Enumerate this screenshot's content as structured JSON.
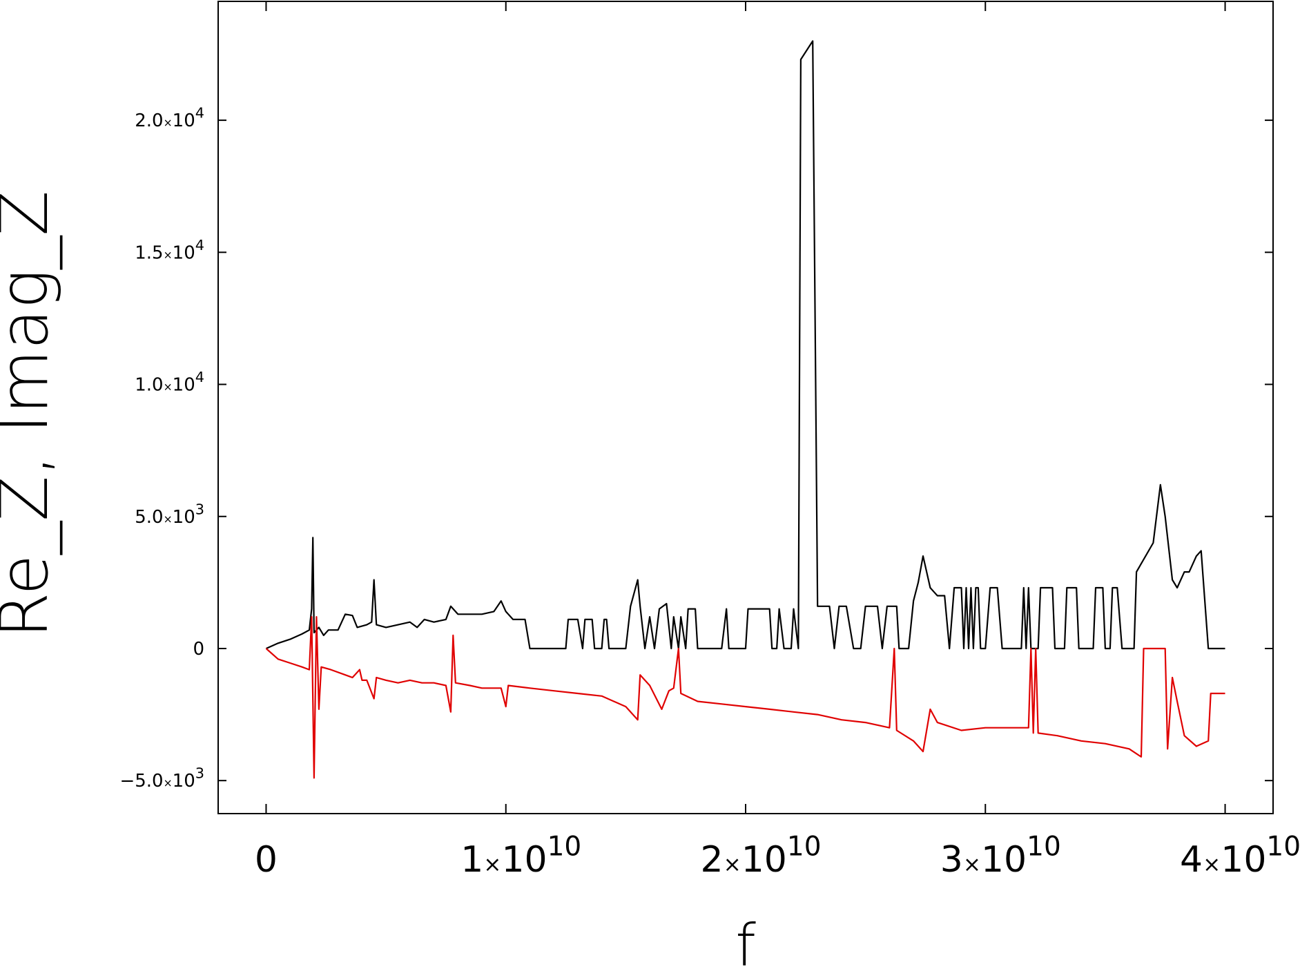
{
  "chart_data": {
    "type": "line",
    "xlabel": "f",
    "ylabel": "Re_Z, Imag_Z",
    "xlim": [
      -2000000000,
      42000000000
    ],
    "ylim": [
      -6250,
      24500
    ],
    "x_ticks": [
      0,
      10000000000,
      20000000000,
      30000000000,
      40000000000
    ],
    "x_tick_labels": [
      {
        "mantissa": "0",
        "times": "",
        "base": "",
        "exp": ""
      },
      {
        "mantissa": "1",
        "times": "×",
        "base": "10",
        "exp": "10"
      },
      {
        "mantissa": "2",
        "times": "×",
        "base": "10",
        "exp": "10"
      },
      {
        "mantissa": "3",
        "times": "×",
        "base": "10",
        "exp": "10"
      },
      {
        "mantissa": "4",
        "times": "×",
        "base": "10",
        "exp": "10"
      }
    ],
    "y_ticks": [
      -5000,
      0,
      5000,
      10000,
      15000,
      20000
    ],
    "y_tick_labels": [
      {
        "mantissa": "−5.0",
        "times": "×",
        "base": "10",
        "exp": "3"
      },
      {
        "mantissa": "0",
        "times": "",
        "base": "",
        "exp": ""
      },
      {
        "mantissa": "5.0",
        "times": "×",
        "base": "10",
        "exp": "3"
      },
      {
        "mantissa": "1.0",
        "times": "×",
        "base": "10",
        "exp": "4"
      },
      {
        "mantissa": "1.5",
        "times": "×",
        "base": "10",
        "exp": "4"
      },
      {
        "mantissa": "2.0",
        "times": "×",
        "base": "10",
        "exp": "4"
      }
    ],
    "grid": false,
    "series": [
      {
        "color": "#000000",
        "points": [
          [
            0,
            0
          ],
          [
            500000000,
            200
          ],
          [
            1000000000,
            350
          ],
          [
            1500000000,
            550
          ],
          [
            1800000000,
            700
          ],
          [
            1900000000,
            1500
          ],
          [
            1950000000,
            4200
          ],
          [
            2000000000,
            600
          ],
          [
            2200000000,
            800
          ],
          [
            2400000000,
            500
          ],
          [
            2600000000,
            700
          ],
          [
            3000000000,
            700
          ],
          [
            3300000000,
            1300
          ],
          [
            3600000000,
            1250
          ],
          [
            3800000000,
            800
          ],
          [
            4200000000,
            900
          ],
          [
            4400000000,
            1000
          ],
          [
            4500000000,
            2600
          ],
          [
            4600000000,
            900
          ],
          [
            5000000000,
            800
          ],
          [
            5500000000,
            900
          ],
          [
            6000000000,
            1000
          ],
          [
            6300000000,
            800
          ],
          [
            6600000000,
            1100
          ],
          [
            7000000000,
            1000
          ],
          [
            7500000000,
            1100
          ],
          [
            7700000000,
            1600
          ],
          [
            8000000000,
            1300
          ],
          [
            8500000000,
            1300
          ],
          [
            9000000000,
            1300
          ],
          [
            9500000000,
            1400
          ],
          [
            9800000000,
            1800
          ],
          [
            10000000000,
            1400
          ],
          [
            10300000000,
            1100
          ],
          [
            10800000000,
            1100
          ],
          [
            11000000000,
            0
          ],
          [
            12000000000,
            0
          ],
          [
            12500000000,
            0
          ],
          [
            12600000000,
            1100
          ],
          [
            13000000000,
            1100
          ],
          [
            13200000000,
            0
          ],
          [
            13300000000,
            1100
          ],
          [
            13600000000,
            1100
          ],
          [
            13700000000,
            0
          ],
          [
            14000000000,
            0
          ],
          [
            14100000000,
            1100
          ],
          [
            14200000000,
            1100
          ],
          [
            14300000000,
            0
          ],
          [
            15000000000,
            0
          ],
          [
            15200000000,
            1600
          ],
          [
            15500000000,
            2600
          ],
          [
            15600000000,
            1600
          ],
          [
            15800000000,
            0
          ],
          [
            16000000000,
            1200
          ],
          [
            16200000000,
            0
          ],
          [
            16400000000,
            1500
          ],
          [
            16700000000,
            1700
          ],
          [
            16900000000,
            0
          ],
          [
            17000000000,
            1200
          ],
          [
            17200000000,
            0
          ],
          [
            17300000000,
            1200
          ],
          [
            17500000000,
            0
          ],
          [
            17600000000,
            1500
          ],
          [
            17900000000,
            1500
          ],
          [
            18000000000,
            0
          ],
          [
            19000000000,
            0
          ],
          [
            19200000000,
            1500
          ],
          [
            19300000000,
            0
          ],
          [
            20000000000,
            0
          ],
          [
            20100000000,
            1500
          ],
          [
            21000000000,
            1500
          ],
          [
            21100000000,
            0
          ],
          [
            21300000000,
            0
          ],
          [
            21400000000,
            1500
          ],
          [
            21600000000,
            0
          ],
          [
            21900000000,
            0
          ],
          [
            22000000000,
            1500
          ],
          [
            22200000000,
            0
          ],
          [
            22300000000,
            22300
          ],
          [
            22800000000,
            23000
          ],
          [
            23000000000,
            1600
          ],
          [
            23500000000,
            1600
          ],
          [
            23700000000,
            0
          ],
          [
            23900000000,
            1600
          ],
          [
            24200000000,
            1600
          ],
          [
            24500000000,
            0
          ],
          [
            24800000000,
            0
          ],
          [
            25000000000,
            1600
          ],
          [
            25500000000,
            1600
          ],
          [
            25700000000,
            0
          ],
          [
            25900000000,
            1600
          ],
          [
            26300000000,
            1600
          ],
          [
            26400000000,
            0
          ],
          [
            26800000000,
            0
          ],
          [
            27000000000,
            1800
          ],
          [
            27200000000,
            2500
          ],
          [
            27400000000,
            3500
          ],
          [
            27700000000,
            2300
          ],
          [
            27900000000,
            2100
          ],
          [
            28000000000,
            2000
          ],
          [
            28300000000,
            2000
          ],
          [
            28500000000,
            0
          ],
          [
            28700000000,
            2300
          ],
          [
            29000000000,
            2300
          ],
          [
            29100000000,
            0
          ],
          [
            29200000000,
            2300
          ],
          [
            29300000000,
            0
          ],
          [
            29400000000,
            2300
          ],
          [
            29500000000,
            0
          ],
          [
            29600000000,
            2300
          ],
          [
            29700000000,
            2300
          ],
          [
            29800000000,
            0
          ],
          [
            30000000000,
            0
          ],
          [
            30200000000,
            2300
          ],
          [
            30500000000,
            2300
          ],
          [
            30700000000,
            0
          ],
          [
            31500000000,
            0
          ],
          [
            31600000000,
            2300
          ],
          [
            31700000000,
            0
          ],
          [
            31800000000,
            2300
          ],
          [
            31900000000,
            0
          ],
          [
            32200000000,
            0
          ],
          [
            32300000000,
            2300
          ],
          [
            32800000000,
            2300
          ],
          [
            32900000000,
            0
          ],
          [
            33300000000,
            0
          ],
          [
            33400000000,
            2300
          ],
          [
            33800000000,
            2300
          ],
          [
            33900000000,
            0
          ],
          [
            34500000000,
            0
          ],
          [
            34600000000,
            2300
          ],
          [
            34900000000,
            2300
          ],
          [
            35000000000,
            0
          ],
          [
            35200000000,
            0
          ],
          [
            35300000000,
            2300
          ],
          [
            35500000000,
            2300
          ],
          [
            35700000000,
            0
          ],
          [
            36200000000,
            0
          ],
          [
            36300000000,
            2900
          ],
          [
            37000000000,
            4000
          ],
          [
            37300000000,
            6200
          ],
          [
            37500000000,
            5000
          ],
          [
            37800000000,
            2600
          ],
          [
            38000000000,
            2300
          ],
          [
            38300000000,
            2900
          ],
          [
            38500000000,
            2900
          ],
          [
            38800000000,
            3500
          ],
          [
            39000000000,
            3700
          ],
          [
            39300000000,
            0
          ],
          [
            40000000000,
            0
          ]
        ]
      },
      {
        "color": "#e00000",
        "points": [
          [
            0,
            0
          ],
          [
            500000000,
            -400
          ],
          [
            1000000000,
            -550
          ],
          [
            1500000000,
            -700
          ],
          [
            1800000000,
            -800
          ],
          [
            1900000000,
            1200
          ],
          [
            2000000000,
            -4900
          ],
          [
            2100000000,
            1200
          ],
          [
            2200000000,
            -2300
          ],
          [
            2300000000,
            -700
          ],
          [
            2700000000,
            -800
          ],
          [
            3300000000,
            -1000
          ],
          [
            3600000000,
            -1100
          ],
          [
            3900000000,
            -800
          ],
          [
            4000000000,
            -1200
          ],
          [
            4200000000,
            -1200
          ],
          [
            4500000000,
            -1900
          ],
          [
            4600000000,
            -1100
          ],
          [
            5000000000,
            -1200
          ],
          [
            5500000000,
            -1300
          ],
          [
            6000000000,
            -1200
          ],
          [
            6500000000,
            -1300
          ],
          [
            7000000000,
            -1300
          ],
          [
            7500000000,
            -1400
          ],
          [
            7700000000,
            -2400
          ],
          [
            7800000000,
            500
          ],
          [
            7900000000,
            -1300
          ],
          [
            8500000000,
            -1400
          ],
          [
            9000000000,
            -1500
          ],
          [
            9500000000,
            -1500
          ],
          [
            9800000000,
            -1500
          ],
          [
            10000000000,
            -2200
          ],
          [
            10100000000,
            -1400
          ],
          [
            11000000000,
            -1500
          ],
          [
            12000000000,
            -1600
          ],
          [
            13000000000,
            -1700
          ],
          [
            14000000000,
            -1800
          ],
          [
            15000000000,
            -2200
          ],
          [
            15500000000,
            -2700
          ],
          [
            15600000000,
            -1000
          ],
          [
            16000000000,
            -1400
          ],
          [
            16500000000,
            -2300
          ],
          [
            16800000000,
            -1600
          ],
          [
            17000000000,
            -1500
          ],
          [
            17200000000,
            0
          ],
          [
            17300000000,
            -1700
          ],
          [
            18000000000,
            -2000
          ],
          [
            19000000000,
            -2100
          ],
          [
            20000000000,
            -2200
          ],
          [
            21000000000,
            -2300
          ],
          [
            22000000000,
            -2400
          ],
          [
            23000000000,
            -2500
          ],
          [
            24000000000,
            -2700
          ],
          [
            25000000000,
            -2800
          ],
          [
            26000000000,
            -3000
          ],
          [
            26200000000,
            0
          ],
          [
            26300000000,
            -3100
          ],
          [
            27000000000,
            -3500
          ],
          [
            27400000000,
            -3900
          ],
          [
            27700000000,
            -2300
          ],
          [
            28000000000,
            -2800
          ],
          [
            29000000000,
            -3100
          ],
          [
            30000000000,
            -3000
          ],
          [
            31000000000,
            -3000
          ],
          [
            31800000000,
            -3000
          ],
          [
            31900000000,
            0
          ],
          [
            32000000000,
            -3200
          ],
          [
            32100000000,
            0
          ],
          [
            32200000000,
            -3200
          ],
          [
            33000000000,
            -3300
          ],
          [
            34000000000,
            -3500
          ],
          [
            35000000000,
            -3600
          ],
          [
            36000000000,
            -3800
          ],
          [
            36500000000,
            -4100
          ],
          [
            36600000000,
            0
          ],
          [
            37500000000,
            0
          ],
          [
            37600000000,
            -3800
          ],
          [
            37800000000,
            -1100
          ],
          [
            38000000000,
            -2000
          ],
          [
            38300000000,
            -3300
          ],
          [
            38800000000,
            -3700
          ],
          [
            39300000000,
            -3500
          ],
          [
            39400000000,
            -1700
          ],
          [
            40000000000,
            -1700
          ]
        ]
      }
    ]
  }
}
